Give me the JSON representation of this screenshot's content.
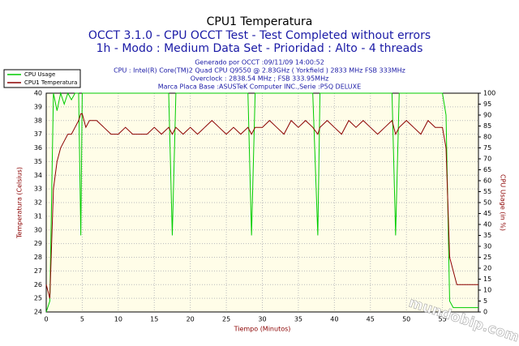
{
  "chart_data": {
    "type": "line",
    "title": "CPU1 Temperatura",
    "subtitle": "OCCT 3.1.0 - CPU OCCT Test - Test Completed without errors",
    "subtitle2": "1h - Modo : Medium Data Set - Prioridad : Alto - 4 threads",
    "info": [
      "Generado por OCCT :09/11/09 14:00:52",
      "CPU : Intel(R) Core(TM)2 Quad CPU Q9550 @ 2.83GHz ( Yorkfield ) 2833 MHz FSB 333MHz",
      "Overclock : 2838.54 MHz ; FSB 333.95MHz",
      "Marca Placa Base :ASUSTeK Computer INC.,Serie :P5Q DELUXE"
    ],
    "watermark": "mundobip.com",
    "x_label": "Tiempo (Minutos)",
    "y_label": "Temperatura (Celsius)",
    "y2_label": "CPU Usage (in %)",
    "x": [
      0,
      0.5,
      1,
      1.5,
      2,
      2.5,
      3,
      3.5,
      4,
      4.5,
      4.8,
      5,
      5.5,
      6,
      7,
      8,
      9,
      10,
      11,
      12,
      13,
      14,
      15,
      16,
      17,
      17.5,
      18,
      19,
      20,
      21,
      22,
      23,
      24,
      25,
      26,
      27,
      28,
      28.5,
      29,
      30,
      31,
      32,
      33,
      34,
      35,
      36,
      37,
      37.7,
      38,
      39,
      40,
      41,
      42,
      43,
      44,
      45,
      46,
      47,
      48,
      48.5,
      49,
      50,
      51,
      52,
      53,
      54,
      55,
      55.5,
      56,
      56.5,
      57,
      58,
      59,
      60
    ],
    "series": [
      {
        "name": "CPU Usage",
        "color": "#00cc00",
        "axis": "y2",
        "values": [
          0,
          5,
          100,
          92,
          100,
          95,
          100,
          97,
          100,
          100,
          35,
          100,
          100,
          100,
          100,
          100,
          100,
          100,
          100,
          100,
          100,
          100,
          100,
          100,
          100,
          35,
          100,
          100,
          100,
          100,
          100,
          100,
          100,
          100,
          100,
          100,
          100,
          35,
          100,
          100,
          100,
          100,
          100,
          100,
          100,
          100,
          100,
          35,
          100,
          100,
          100,
          100,
          100,
          100,
          100,
          100,
          100,
          100,
          100,
          35,
          100,
          100,
          100,
          100,
          100,
          100,
          100,
          90,
          5,
          2,
          2,
          2,
          2,
          2
        ]
      },
      {
        "name": "CPU1 Temperatura",
        "color": "#8b0000",
        "values": [
          26,
          25,
          33,
          35,
          36,
          36.5,
          37,
          37,
          37.5,
          38,
          38.5,
          38.5,
          37.5,
          38,
          38,
          37.5,
          37,
          37,
          37.5,
          37,
          37,
          37,
          37.5,
          37,
          37.5,
          37,
          37.5,
          37,
          37.5,
          37,
          37.5,
          38,
          37.5,
          37,
          37.5,
          37,
          37.5,
          37,
          37.5,
          37.5,
          38,
          37.5,
          37,
          38,
          37.5,
          38,
          37.5,
          37,
          37.5,
          38,
          37.5,
          37,
          38,
          37.5,
          38,
          37.5,
          37,
          37.5,
          38,
          37,
          37.5,
          38,
          37.5,
          37,
          38,
          37.5,
          37.5,
          36,
          28,
          27,
          26,
          26,
          26,
          26
        ]
      }
    ],
    "xlim": [
      0,
      60
    ],
    "xticks": [
      0,
      5,
      10,
      15,
      20,
      25,
      30,
      35,
      40,
      45,
      50,
      55
    ],
    "ylim": [
      24,
      40
    ],
    "yticks": [
      24,
      25,
      26,
      27,
      28,
      29,
      30,
      31,
      32,
      33,
      34,
      35,
      36,
      37,
      38,
      39,
      40
    ],
    "y2lim": [
      0,
      100
    ],
    "y2ticks": [
      0,
      5,
      10,
      15,
      20,
      25,
      30,
      35,
      40,
      45,
      50,
      55,
      60,
      65,
      70,
      75,
      80,
      85,
      90,
      95,
      100
    ],
    "grid": true,
    "legend": "top-left"
  }
}
